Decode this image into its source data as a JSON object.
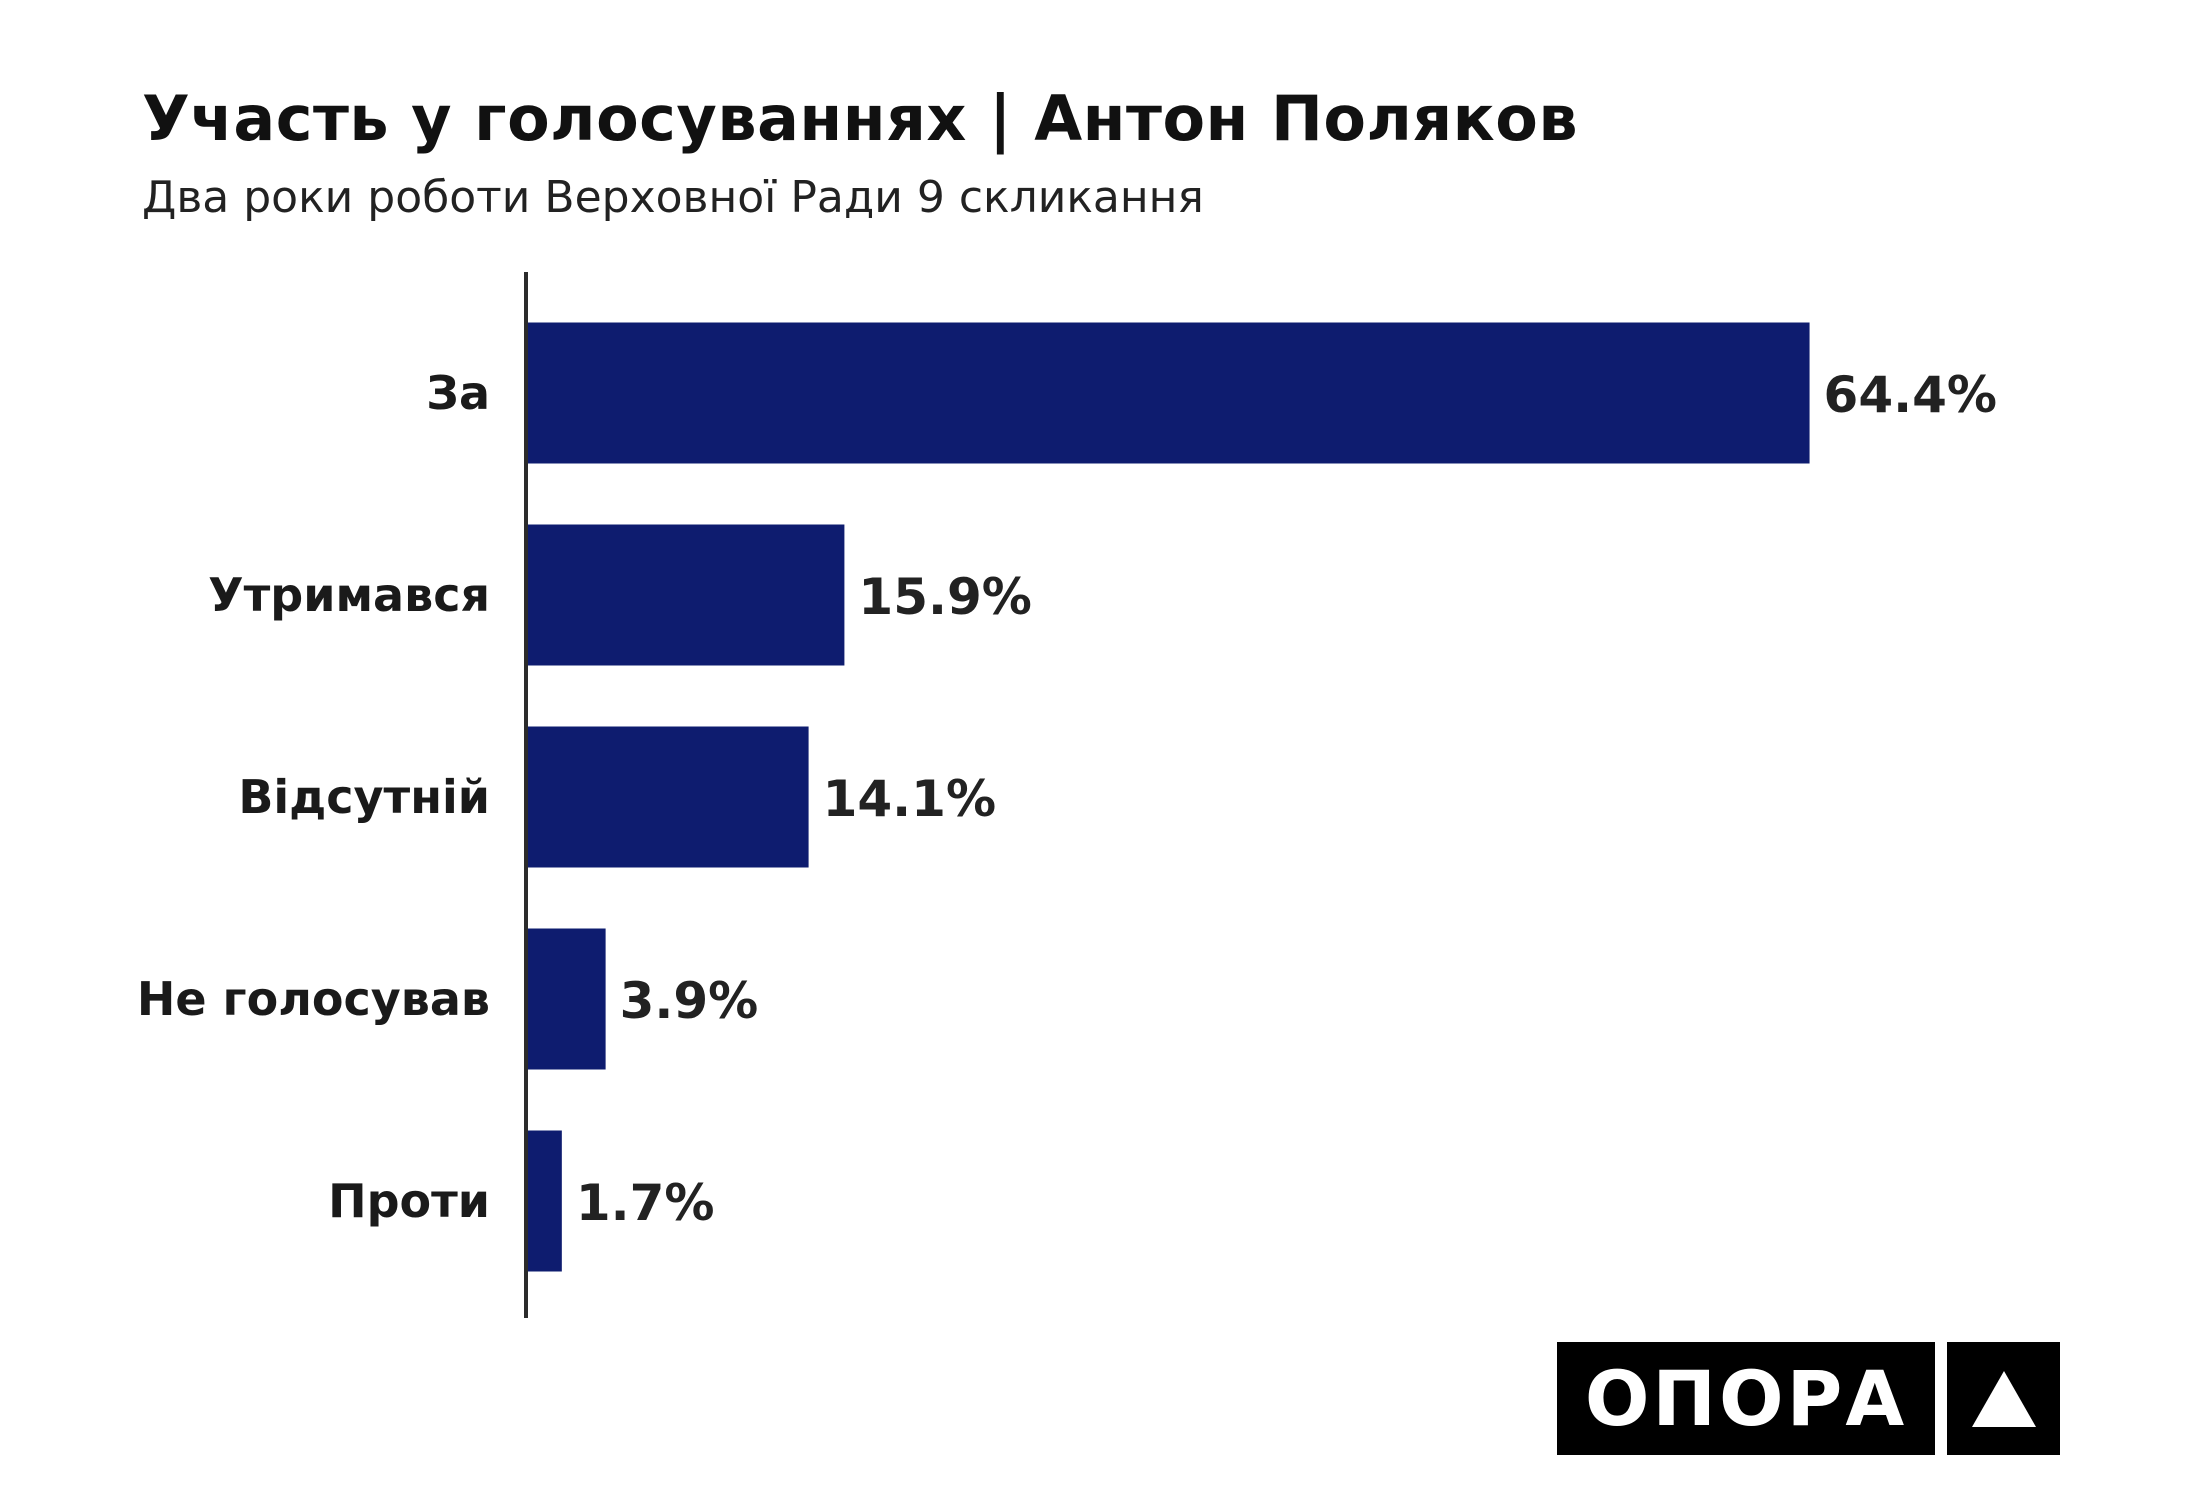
{
  "chart_data": {
    "type": "bar",
    "orientation": "horizontal",
    "title": "Участь у голосуваннях | Антон Поляков",
    "subtitle": "Два роки роботи Верховної Ради 9 скликання",
    "categories": [
      "За",
      "Утримався",
      "Відсутній",
      "Не голосував",
      "Проти"
    ],
    "values": [
      64.4,
      15.9,
      14.1,
      3.9,
      1.7
    ],
    "value_labels": [
      "64.4%",
      "15.9%",
      "14.1%",
      "3.9%",
      "1.7%"
    ],
    "unit": "%",
    "xlim": [
      0,
      100
    ],
    "grid": false,
    "legend": "none",
    "bar_color": "#0e1c6f"
  },
  "logo": {
    "text": "ОПОРА",
    "icon": "triangle-icon"
  }
}
